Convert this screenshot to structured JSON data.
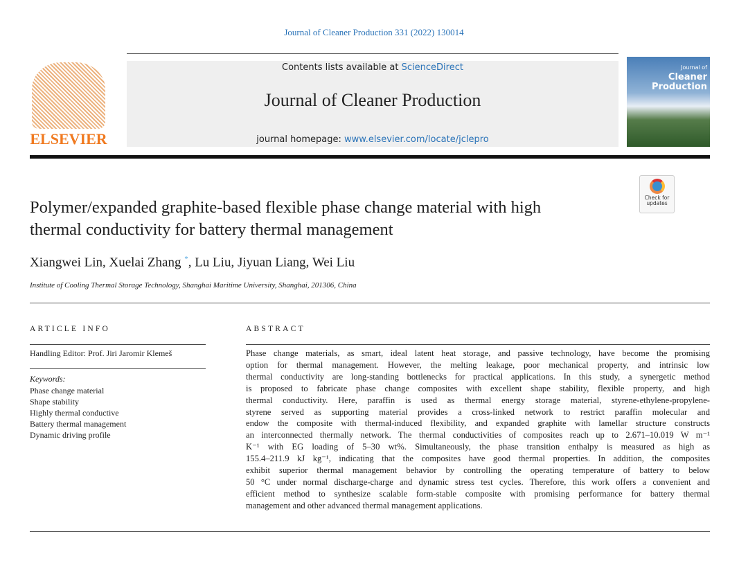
{
  "header": {
    "journal_ref": "Journal of Cleaner Production 331 (2022) 130014",
    "contents_prefix": "Contents lists available at ",
    "contents_link": "ScienceDirect",
    "journal_title": "Journal of Cleaner Production",
    "homepage_prefix": "journal homepage: ",
    "homepage_link": "www.elsevier.com/locate/jclepro",
    "publisher_logo": "ELSEVIER",
    "cover_title": "Cleaner Production",
    "cover_subtitle": "Journal of",
    "badge": "Check for updates",
    "link_color": "#2a73b8"
  },
  "article": {
    "title_lines": [
      "Polymer/expanded graphite-based flexible phase change material with high",
      "thermal conductivity for battery thermal management"
    ],
    "authors": [
      "Xiangwei Lin",
      "Xuelai Zhang",
      "Lu Liu",
      "Jiyuan Liang",
      "Wei Liu"
    ],
    "corresponding_mark": "*",
    "affiliation": "Institute of Cooling Thermal Storage Technology, Shanghai Maritime University, Shanghai, 201306, China"
  },
  "article_info": {
    "heading": "ARTICLE INFO",
    "editor": "Handling Editor: Prof. Jiri Jaromir Klemeš",
    "keywords_label": "Keywords:",
    "keywords": [
      "Phase change material",
      "Shape stability",
      "Highly thermal conductive",
      "Battery thermal management",
      "Dynamic driving profile"
    ]
  },
  "abstract": {
    "heading": "ABSTRACT",
    "lines": [
      "Phase change materials, as smart, ideal latent heat storage, and passive technology, have become the promising",
      "option for thermal management. However, the melting leakage, poor mechanical property, and intrinsic low",
      "thermal conductivity are long-standing bottlenecks for practical applications. In this study, a synergetic method",
      "is proposed to fabricate phase change composites with excellent shape stability, flexible property, and high",
      "thermal conductivity. Here, paraffin is used as thermal energy storage material, styrene-ethylene-propylene-",
      "styrene served as supporting material provides a cross-linked network to restrict paraffin molecular and",
      "endow the composite with thermal-induced flexibility, and expanded graphite with lamellar structure constructs",
      "an interconnected thermally network. The thermal conductivities of composites reach up to 2.671–10.019 W m⁻¹",
      "K⁻¹ with EG loading of 5–30 wt%. Simultaneously, the phase transition enthalpy is measured as high as",
      "155.4–211.9 kJ kg⁻¹, indicating that the composites have good thermal properties. In addition, the composites",
      "exhibit superior thermal management behavior by controlling the operating temperature of battery to below",
      "50 °C under normal discharge-charge and dynamic stress test cycles. Therefore, this work offers a convenient and",
      "efficient method to synthesize scalable form-stable composite with promising performance for battery thermal",
      "management and other advanced thermal management applications."
    ]
  }
}
